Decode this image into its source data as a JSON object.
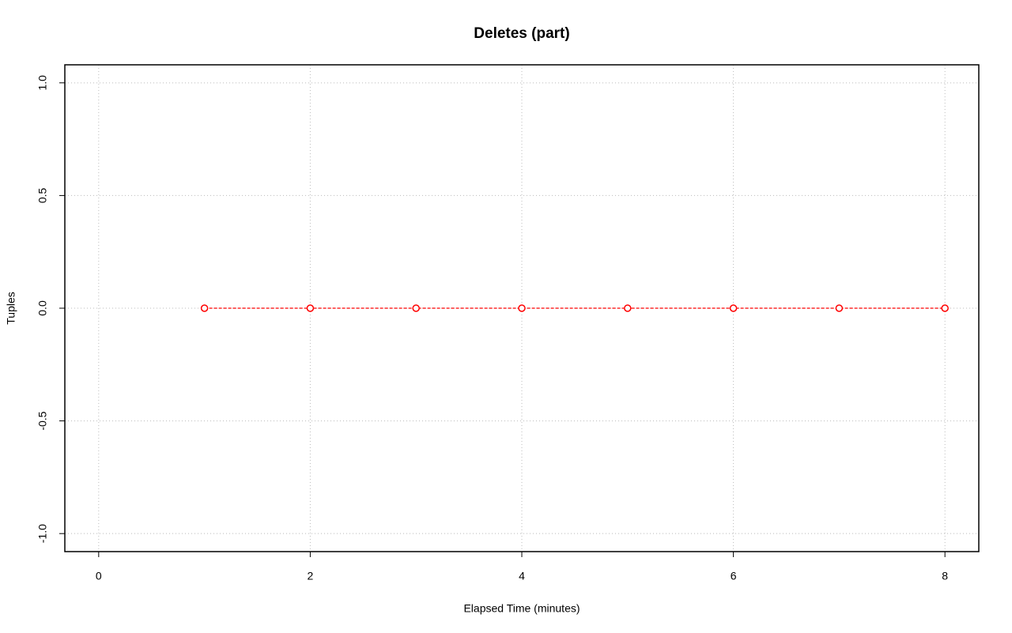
{
  "chart_data": {
    "type": "line",
    "title": "Deletes (part)",
    "x_label": "Elapsed Time (minutes)",
    "y_label": "Tuples",
    "x": [
      1,
      2,
      3,
      4,
      5,
      6,
      7,
      8
    ],
    "series": [
      {
        "color": "#ff0000",
        "values": [
          0,
          0,
          0,
          0,
          0,
          0,
          0,
          0
        ]
      }
    ],
    "xlim": [
      -0.32,
      8.32
    ],
    "xticks": [
      0,
      2,
      4,
      6,
      8
    ],
    "ylim": [
      -1.08,
      1.08
    ],
    "yticks": [
      {
        "value": -1,
        "label": "-1.0"
      },
      {
        "value": -0.5,
        "label": "-0.5"
      },
      {
        "value": 0,
        "label": "0.0"
      },
      {
        "value": 0.5,
        "label": "0.5"
      },
      {
        "value": 1,
        "label": "1.0"
      }
    ],
    "grid": true
  }
}
